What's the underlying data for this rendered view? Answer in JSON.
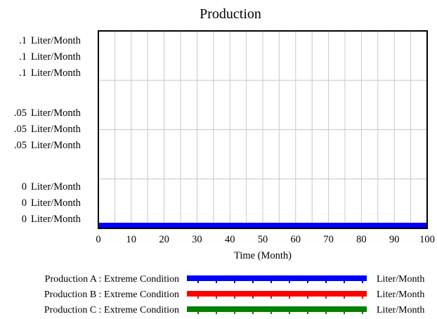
{
  "chart_data": {
    "type": "line",
    "title": "Production",
    "xlabel": "Time (Month)",
    "ylabel": "",
    "xlim": [
      0,
      100
    ],
    "ylim": [
      0,
      0.1
    ],
    "x_ticks": [
      "0",
      "10",
      "20",
      "30",
      "40",
      "50",
      "60",
      "70",
      "80",
      "90",
      "100"
    ],
    "y_tick_groups": [
      {
        "value": 0.1,
        "labels": [
          ".1",
          ".1",
          ".1"
        ]
      },
      {
        "value": 0.05,
        "labels": [
          ".05",
          ".05",
          ".05"
        ]
      },
      {
        "value": 0,
        "labels": [
          "0",
          "0",
          "0"
        ]
      }
    ],
    "y_unit": "Liter/Month",
    "grid": true,
    "legend_position": "bottom",
    "x": [
      0,
      100
    ],
    "series": [
      {
        "name": "Production A : Extreme Condition",
        "unit": "Liter/Month",
        "color": "#0000ff",
        "values": [
          0,
          0
        ]
      },
      {
        "name": "Production B : Extreme Condition",
        "unit": "Liter/Month",
        "color": "#ff0000",
        "values": [
          0,
          0
        ]
      },
      {
        "name": "Production C : Extreme Condition",
        "unit": "Liter/Month",
        "color": "#008000",
        "values": [
          0,
          0
        ]
      }
    ]
  }
}
